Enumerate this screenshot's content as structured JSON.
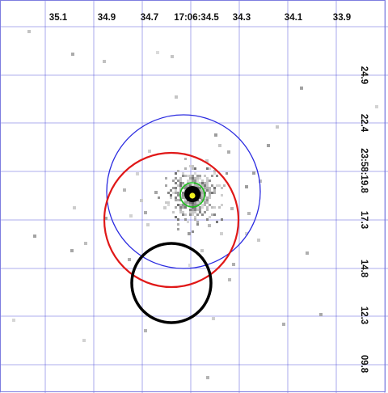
{
  "ra_axis": {
    "ticks": [
      "35.1",
      "34.9",
      "34.7",
      "17:06:34.5",
      "34.3",
      "34.1",
      "33.9"
    ]
  },
  "dec_axis": {
    "ticks": [
      "24.9",
      "22.4",
      "23:58:19.8",
      "17.3",
      "14.8",
      "12.3",
      "09.8"
    ]
  },
  "colors": {
    "grid": "#3b3bd6",
    "blue_circle": "#2a2ae0",
    "red_circle": "#e01818",
    "black_circle": "#000000",
    "green_circle": "#18c018",
    "center_dot": "#f0f020",
    "source_core": "#000000"
  }
}
